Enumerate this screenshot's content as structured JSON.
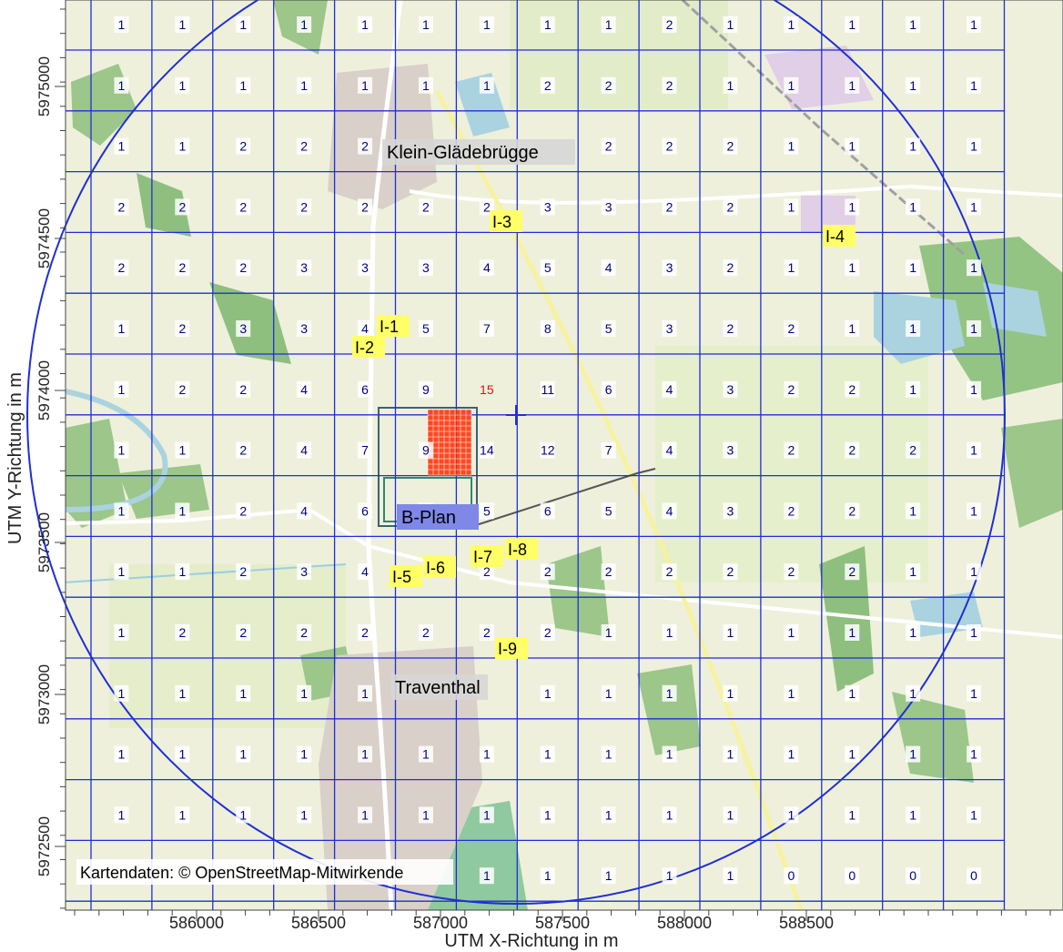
{
  "axes": {
    "xlabel": "UTM X-Richtung in m",
    "ylabel": "UTM Y-Richtung in m",
    "x_ticks": [
      "586000",
      "586500",
      "587000",
      "587500",
      "588000",
      "588500"
    ],
    "y_ticks": [
      "5972500",
      "5973000",
      "5973500",
      "5974000",
      "5974500",
      "5975000"
    ]
  },
  "attribution": "Kartendaten: © OpenStreetMap-Mitwirkende",
  "places": [
    "Klein-Glädebrügge",
    "Traventhal"
  ],
  "plan_label": "B-Plan",
  "receptor_labels": [
    "I-1",
    "I-2",
    "I-3",
    "I-4",
    "I-5",
    "I-6",
    "I-7",
    "I-8",
    "I-9"
  ],
  "grid_values": [
    [
      "1",
      "1",
      "1",
      "1",
      "1",
      "1",
      "1",
      "1",
      "1",
      "2",
      "1",
      "1",
      "1",
      "1",
      "1"
    ],
    [
      "1",
      "1",
      "1",
      "1",
      "1",
      "1",
      "1",
      "2",
      "2",
      "2",
      "1",
      "1",
      "1",
      "1",
      "1"
    ],
    [
      "1",
      "1",
      "2",
      "2",
      "2",
      "",
      "",
      "",
      "2",
      "2",
      "2",
      "1",
      "1",
      "1",
      "1"
    ],
    [
      "2",
      "2",
      "2",
      "2",
      "2",
      "2",
      "2",
      "3",
      "3",
      "2",
      "2",
      "1",
      "1",
      "1",
      "1"
    ],
    [
      "2",
      "2",
      "2",
      "3",
      "3",
      "3",
      "4",
      "5",
      "4",
      "3",
      "2",
      "1",
      "1",
      "1",
      "1"
    ],
    [
      "1",
      "2",
      "3",
      "3",
      "4",
      "5",
      "7",
      "8",
      "5",
      "3",
      "2",
      "2",
      "1",
      "1",
      "1"
    ],
    [
      "1",
      "2",
      "2",
      "4",
      "6",
      "9",
      "15",
      "11",
      "6",
      "4",
      "3",
      "2",
      "2",
      "1",
      "1"
    ],
    [
      "1",
      "1",
      "2",
      "4",
      "7",
      "9",
      "14",
      "12",
      "7",
      "4",
      "3",
      "2",
      "2",
      "2",
      "1"
    ],
    [
      "1",
      "1",
      "2",
      "4",
      "6",
      "6",
      "5",
      "6",
      "5",
      "4",
      "3",
      "2",
      "2",
      "1",
      "1"
    ],
    [
      "1",
      "1",
      "2",
      "3",
      "4",
      "",
      "2",
      "2",
      "2",
      "2",
      "2",
      "2",
      "2",
      "1",
      "1"
    ],
    [
      "1",
      "2",
      "2",
      "2",
      "2",
      "2",
      "2",
      "2",
      "1",
      "1",
      "1",
      "1",
      "1",
      "1",
      "1"
    ],
    [
      "1",
      "1",
      "1",
      "1",
      "1",
      "",
      "",
      "1",
      "1",
      "1",
      "1",
      "1",
      "1",
      "1",
      "1"
    ],
    [
      "1",
      "1",
      "1",
      "1",
      "1",
      "1",
      "1",
      "1",
      "1",
      "1",
      "1",
      "1",
      "1",
      "1",
      "1"
    ],
    [
      "1",
      "1",
      "1",
      "1",
      "1",
      "1",
      "1",
      "1",
      "1",
      "1",
      "1",
      "1",
      "1",
      "1",
      "1"
    ],
    [
      "",
      "",
      "",
      "",
      "",
      "",
      "1",
      "1",
      "1",
      "1",
      "1",
      "0",
      "0",
      "0",
      "0"
    ]
  ],
  "colors": {
    "grid": "#1f2fd6",
    "value": "#000080",
    "max_value": "#e01010",
    "source": "#ff2a00",
    "receptor_bg": "#ffff66",
    "plan_bg": "#7f88e8"
  }
}
